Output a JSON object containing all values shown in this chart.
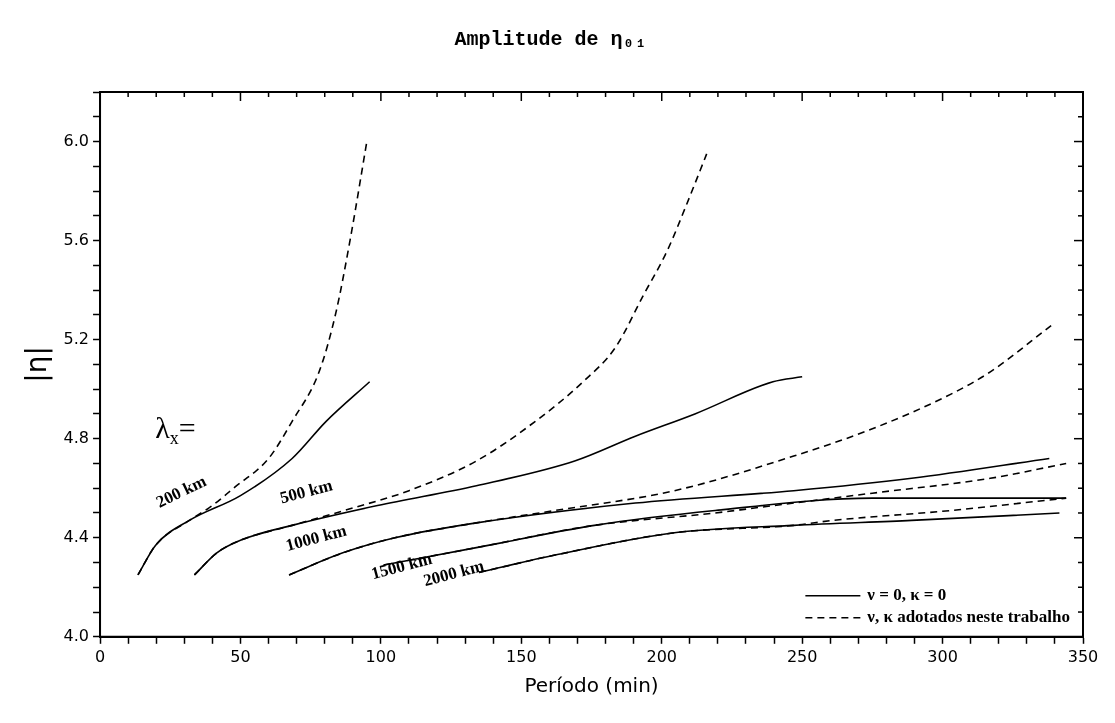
{
  "chart_data": {
    "type": "line",
    "title": "Amplitude de η₀₁",
    "xlabel": "Período (min)",
    "ylabel": "|η|",
    "xlim": [
      0,
      350
    ],
    "ylim": [
      4.0,
      6.2
    ],
    "xticks": [
      0,
      {
        "value": 10,
        "label": null
      },
      {
        "value": 20,
        "label": null
      },
      {
        "value": 30,
        "label": null
      },
      {
        "value": 40,
        "label": null
      },
      50,
      {
        "value": 60,
        "label": null
      },
      {
        "value": 70,
        "label": null
      },
      {
        "value": 80,
        "label": null
      },
      {
        "value": 90,
        "label": null
      },
      100,
      {
        "value": 110,
        "label": null
      },
      {
        "value": 120,
        "label": null
      },
      {
        "value": 130,
        "label": null
      },
      {
        "value": 140,
        "label": null
      },
      150,
      {
        "value": 160,
        "label": null
      },
      {
        "value": 170,
        "label": null
      },
      {
        "value": 180,
        "label": null
      },
      {
        "value": 190,
        "label": null
      },
      200,
      {
        "value": 210,
        "label": null
      },
      {
        "value": 220,
        "label": null
      },
      {
        "value": 230,
        "label": null
      },
      {
        "value": 240,
        "label": null
      },
      250,
      {
        "value": 260,
        "label": null
      },
      {
        "value": 270,
        "label": null
      },
      {
        "value": 280,
        "label": null
      },
      {
        "value": 290,
        "label": null
      },
      300,
      {
        "value": 310,
        "label": null
      },
      {
        "value": 320,
        "label": null
      },
      {
        "value": 330,
        "label": null
      },
      {
        "value": 340,
        "label": null
      },
      350
    ],
    "yticks": [
      {
        "value": 4.0,
        "label": "4.0"
      },
      {
        "value": 4.1,
        "label": null
      },
      {
        "value": 4.2,
        "label": null
      },
      {
        "value": 4.3,
        "label": null
      },
      4.4,
      {
        "value": 4.5,
        "label": null
      },
      {
        "value": 4.6,
        "label": null
      },
      {
        "value": 4.7,
        "label": null
      },
      4.8,
      {
        "value": 4.9,
        "label": null
      },
      {
        "value": 5.0,
        "label": null
      },
      {
        "value": 5.1,
        "label": null
      },
      5.2,
      {
        "value": 5.3,
        "label": null
      },
      {
        "value": 5.4,
        "label": null
      },
      {
        "value": 5.5,
        "label": null
      },
      5.6,
      {
        "value": 5.7,
        "label": null
      },
      {
        "value": 5.8,
        "label": null
      },
      {
        "value": 5.9,
        "label": null
      },
      {
        "value": 6.0,
        "label": "6.0"
      },
      {
        "value": 6.1,
        "label": null
      },
      {
        "value": 6.2,
        "label": null
      }
    ],
    "grid": false,
    "legend": "bottom right",
    "marker": "none",
    "series": [
      {
        "name": "ν = 0, κ = 0",
        "color": "#000000",
        "line_style": "solid",
        "x": [
          13.5,
          19.8,
          31.8,
          50,
          68.4,
          80.5,
          96
        ],
        "values": [
          4.25,
          4.37,
          4.47,
          4.57,
          4.72,
          4.87,
          5.03
        ]
      },
      {
        "name": "ν, κ adotados neste trabalho",
        "color": "#000000",
        "line_style": "dashed",
        "x": [
          13.5,
          19.8,
          31.8,
          40,
          47.5,
          60,
          68.4,
          78,
          84,
          89,
          95
        ],
        "values": [
          4.25,
          4.37,
          4.47,
          4.53,
          4.6,
          4.72,
          4.87,
          5.07,
          5.31,
          5.6,
          6.0
        ]
      },
      {
        "color": "#000000",
        "line_style": "solid",
        "x": [
          33.6,
          41.7,
          50,
          68.4,
          98.8,
          134,
          169,
          190.6,
          211.8,
          239.6,
          250
        ],
        "values": [
          4.25,
          4.34,
          4.39,
          4.45,
          4.53,
          4.61,
          4.71,
          4.81,
          4.9,
          5.03,
          5.05
        ]
      },
      {
        "color": "#000000",
        "line_style": "dashed",
        "x": [
          33.6,
          41.7,
          50,
          68.4,
          90,
          110,
          134,
          155,
          172,
          183.6,
          193.5,
          202,
          209,
          216
        ],
        "values": [
          4.25,
          4.34,
          4.39,
          4.45,
          4.52,
          4.59,
          4.71,
          4.87,
          5.03,
          5.17,
          5.38,
          5.56,
          5.75,
          5.95
        ]
      },
      {
        "color": "#000000",
        "line_style": "solid",
        "x": [
          67.3,
          86.7,
          105,
          134,
          190.6,
          247,
          289,
          338
        ],
        "values": [
          4.25,
          4.34,
          4.4,
          4.46,
          4.54,
          4.59,
          4.64,
          4.72
        ]
      },
      {
        "color": "#000000",
        "line_style": "dashed",
        "x": [
          67.3,
          86.7,
          105,
          134,
          162,
          204.5,
          247,
          275,
          303,
          317,
          339
        ],
        "values": [
          4.25,
          4.34,
          4.4,
          4.46,
          4.51,
          4.59,
          4.73,
          4.84,
          4.98,
          5.07,
          5.26
        ]
      },
      {
        "color": "#000000",
        "line_style": "solid",
        "x": [
          101,
          134,
          176,
          219,
          275,
          344
        ],
        "values": [
          4.29,
          4.36,
          4.45,
          4.51,
          4.56,
          4.56
        ]
      },
      {
        "color": "#000000",
        "line_style": "dashed",
        "x": [
          101,
          134,
          176,
          219,
          233,
          275,
          317,
          344
        ],
        "values": [
          4.29,
          4.36,
          4.45,
          4.5,
          4.52,
          4.58,
          4.64,
          4.7
        ]
      },
      {
        "color": "#000000",
        "line_style": "solid",
        "x": [
          135,
          162,
          204.5,
          247,
          289,
          341.6
        ],
        "values": [
          4.26,
          4.33,
          4.42,
          4.45,
          4.47,
          4.5
        ]
      },
      {
        "color": "#000000",
        "line_style": "dashed",
        "x": [
          135,
          162,
          204.5,
          247,
          261,
          303,
          344
        ],
        "values": [
          4.26,
          4.33,
          4.42,
          4.45,
          4.47,
          4.51,
          4.56
        ]
      }
    ],
    "annotations": [
      "λ$_{x}$=",
      "200 km",
      "500 km",
      "1000 km",
      "1500 km",
      "2000 km"
    ]
  }
}
